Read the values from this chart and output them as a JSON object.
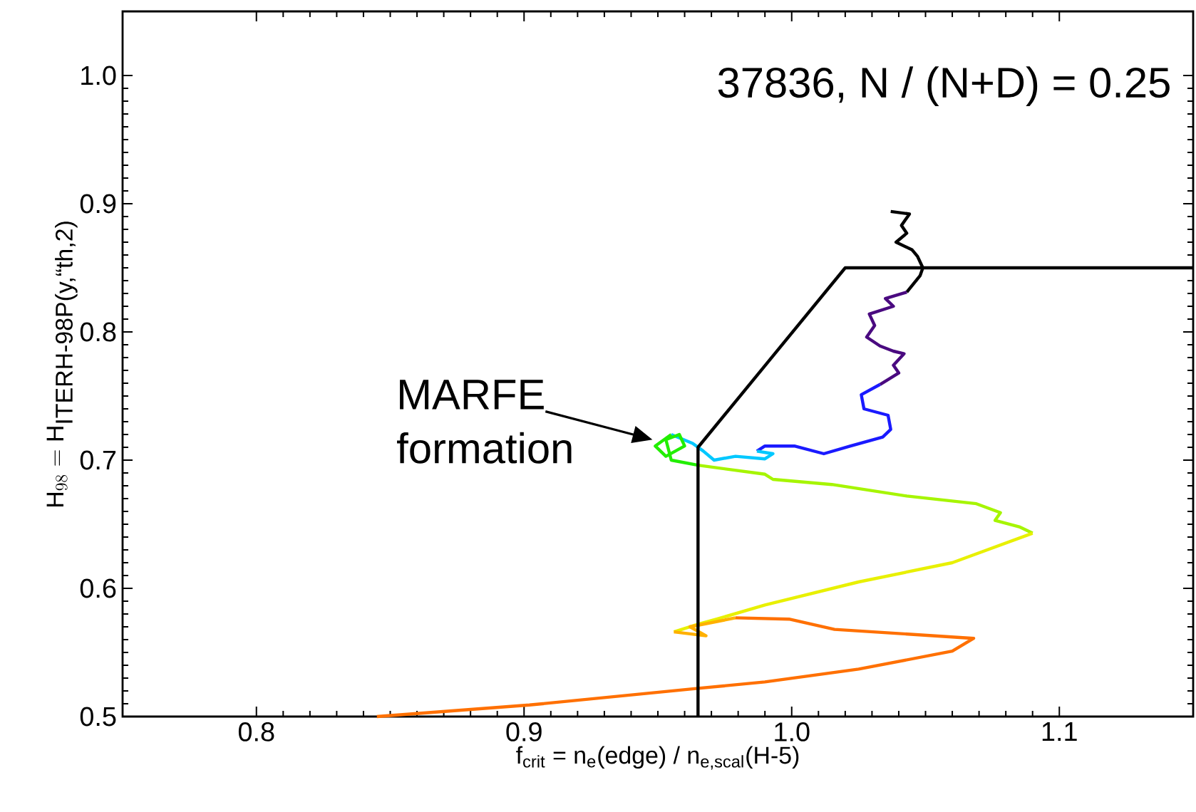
{
  "chart_data": {
    "type": "line",
    "xlabel": "f$_{crit}$ = n$_{e}$(edge) / n$_{e,scal}$(H-5)",
    "ylabel": "\\mathrm{H}_{98} = \\mathrm{H}_{\\mbox{ITERH-98P(y,\\char96\\char96th,2)}}",
    "xlim": [
      0.75,
      1.15
    ],
    "ylim": [
      0.5,
      1.05
    ],
    "xticks": [
      0.8,
      0.9,
      {
        "value": 1.0,
        "label": "1.0"
      },
      1.1
    ],
    "yticks": [
      0.5,
      0.6,
      0.7,
      0.8,
      0.9,
      {
        "value": 1.0,
        "label": "1.0"
      }
    ],
    "annotations": [
      "37836,  N / (N+D) = 0.25",
      {
        "text": "MARFE formation",
        "x": 0.948,
        "y": 0.716
      }
    ],
    "series": [
      {
        "color": "#000000",
        "x": [
          1.037,
          1.044,
          1.041,
          1.043,
          1.039,
          1.045,
          1.047,
          1.049,
          1.048,
          1.043
        ],
        "values": [
          0.894,
          0.892,
          0.883,
          0.877,
          0.87,
          0.864,
          0.859,
          0.85,
          0.844,
          0.831
        ]
      },
      {
        "color": "#4a0a80",
        "x": [
          1.043,
          1.035,
          1.038,
          1.029,
          1.031,
          1.028,
          1.033,
          1.038,
          1.042,
          1.038,
          1.04,
          1.033
        ],
        "values": [
          0.831,
          0.826,
          0.82,
          0.814,
          0.805,
          0.796,
          0.789,
          0.785,
          0.783,
          0.774,
          0.768,
          0.759
        ]
      },
      {
        "color": "#1a1aff",
        "x": [
          1.033,
          1.026,
          1.027,
          1.036,
          1.037,
          1.034,
          1.022,
          1.012,
          1.001,
          0.99,
          0.987
        ],
        "values": [
          0.759,
          0.751,
          0.74,
          0.735,
          0.724,
          0.718,
          0.711,
          0.705,
          0.711,
          0.711,
          0.707
        ]
      },
      {
        "color": "#00c8ff",
        "x": [
          0.987,
          0.993,
          0.99,
          0.979,
          0.971,
          0.967,
          0.963,
          0.955
        ],
        "values": [
          0.707,
          0.705,
          0.701,
          0.703,
          0.7,
          0.707,
          0.713,
          0.72
        ]
      },
      {
        "color": "#22ee00",
        "x": [
          0.955,
          0.949,
          0.953,
          0.96,
          0.958,
          0.953,
          0.955,
          0.965
        ],
        "values": [
          0.72,
          0.711,
          0.703,
          0.711,
          0.72,
          0.716,
          0.7,
          0.696
        ]
      },
      {
        "color": "#a6f500",
        "x": [
          0.965,
          0.99,
          0.993,
          1.015,
          1.043,
          1.069,
          1.078,
          1.076,
          1.085,
          1.09
        ],
        "values": [
          0.696,
          0.689,
          0.685,
          0.681,
          0.672,
          0.666,
          0.659,
          0.653,
          0.648,
          0.643
        ]
      },
      {
        "color": "#e8f000",
        "x": [
          1.09,
          1.06,
          1.025,
          0.99,
          0.972,
          0.965,
          0.956
        ],
        "values": [
          0.643,
          0.62,
          0.605,
          0.587,
          0.576,
          0.572,
          0.566
        ]
      },
      {
        "color": "#ffb000",
        "x": [
          0.956,
          0.968,
          0.962,
          0.979
        ],
        "values": [
          0.566,
          0.563,
          0.57,
          0.577
        ]
      },
      {
        "color": "#ff7000",
        "x": [
          0.979,
          0.999,
          1.016,
          1.068,
          1.06,
          1.025,
          0.99,
          0.965,
          0.902,
          0.845
        ],
        "values": [
          0.577,
          0.576,
          0.568,
          0.561,
          0.551,
          0.537,
          0.527,
          0.522,
          0.509,
          0.5
        ]
      },
      {
        "color": "#000000",
        "x": [
          0.965,
          0.965,
          1.02,
          1.15
        ],
        "values": [
          0.5,
          0.71,
          0.85,
          0.85
        ]
      }
    ]
  }
}
